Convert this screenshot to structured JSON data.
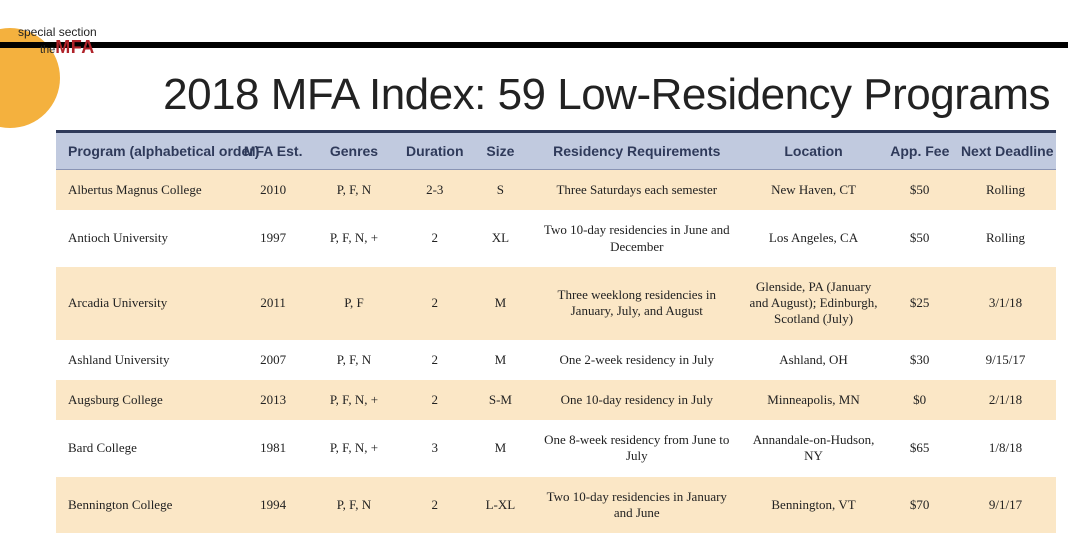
{
  "section": {
    "line1": "special section",
    "line2_prefix": "the",
    "line2_accent": "MFA"
  },
  "title": {
    "prefix": "2018 MFA Index: ",
    "accent": "59 Low-Residency Programs"
  },
  "colors": {
    "accent_red": "#8a2a32",
    "header_bg": "#c1cadf",
    "header_text": "#2f3a5a",
    "row_odd": "#fbe7c6",
    "row_even": "#ffffff",
    "circle": "#f4b13e",
    "topbar": "#000000"
  },
  "table": {
    "columns": [
      "Program (alphabetical order)",
      "MFA Est.",
      "Genres",
      "Duration",
      "Size",
      "Residency Requirements",
      "Location",
      "App. Fee",
      "Next Deadline"
    ],
    "rows": [
      {
        "program": "Albertus Magnus College",
        "est": "2010",
        "genres": "P, F, N",
        "duration": "2-3",
        "size": "S",
        "req": "Three Saturdays each semester",
        "loc": "New Haven, CT",
        "fee": "$50",
        "dead": "Rolling"
      },
      {
        "program": "Antioch University",
        "est": "1997",
        "genres": "P, F, N, +",
        "duration": "2",
        "size": "XL",
        "req": "Two 10-day residencies in June and December",
        "loc": "Los Angeles, CA",
        "fee": "$50",
        "dead": "Rolling"
      },
      {
        "program": "Arcadia University",
        "est": "2011",
        "genres": "P, F",
        "duration": "2",
        "size": "M",
        "req": "Three weeklong residencies in January, July, and August",
        "loc": "Glenside, PA (January and August); Edinburgh, Scotland (July)",
        "fee": "$25",
        "dead": "3/1/18"
      },
      {
        "program": "Ashland University",
        "est": "2007",
        "genres": "P, F, N",
        "duration": "2",
        "size": "M",
        "req": "One 2-week residency in July",
        "loc": "Ashland, OH",
        "fee": "$30",
        "dead": "9/15/17"
      },
      {
        "program": "Augsburg College",
        "est": "2013",
        "genres": "P, F, N, +",
        "duration": "2",
        "size": "S-M",
        "req": "One 10-day residency in July",
        "loc": "Minneapolis, MN",
        "fee": "$0",
        "dead": "2/1/18"
      },
      {
        "program": "Bard College",
        "est": "1981",
        "genres": "P, F, N, +",
        "duration": "3",
        "size": "M",
        "req": "One 8-week residency from June to July",
        "loc": "Annandale-on-Hudson, NY",
        "fee": "$65",
        "dead": "1/8/18"
      },
      {
        "program": "Bennington College",
        "est": "1994",
        "genres": "P, F, N",
        "duration": "2",
        "size": "L-XL",
        "req": "Two 10-day residencies in January and June",
        "loc": "Bennington, VT",
        "fee": "$70",
        "dead": "9/1/17"
      }
    ]
  }
}
